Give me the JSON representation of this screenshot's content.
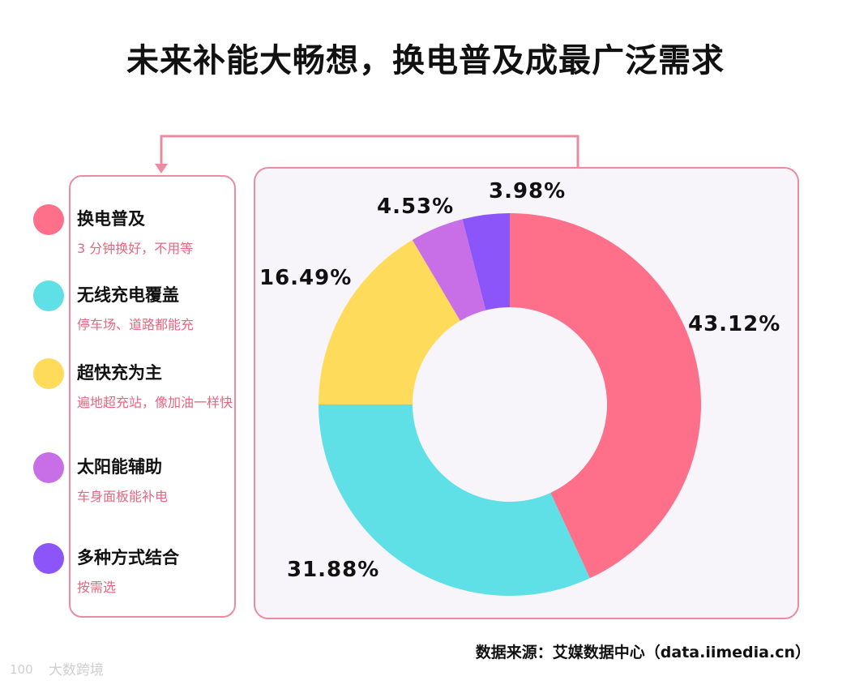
{
  "title": "未来补能大畅想，换电普及成最广泛需求",
  "legend": [
    {
      "title": "换电普及",
      "desc": "3 分钟换好，不用等"
    },
    {
      "title": "无线充电覆盖",
      "desc": "停车场、道路都能充"
    },
    {
      "title": "超快充为主",
      "desc": "遍地超充站，像加油一样快"
    },
    {
      "title": "太阳能辅助",
      "desc": "车身面板能补电"
    },
    {
      "title": "多种方式结合",
      "desc": "按需选"
    }
  ],
  "source": "数据来源：艾媒数据中心（data.iimedia.cn）",
  "watermark": {
    "text": "大数跨境",
    "logo_text": "100"
  },
  "colors": {
    "accent_border": "#ec8b9f",
    "desc_text": "#e4677f"
  },
  "chart_data": {
    "type": "pie",
    "donut": true,
    "categories": [
      "换电普及",
      "无线充电覆盖",
      "超快充为主",
      "太阳能辅助",
      "多种方式结合"
    ],
    "values": [
      43.12,
      31.88,
      16.49,
      4.53,
      3.98
    ],
    "labels": [
      "43.12%",
      "31.88%",
      "16.49%",
      "4.53%",
      "3.98%"
    ],
    "colors": [
      "#fe6f8a",
      "#5ee0e6",
      "#ffdb5c",
      "#c86fe8",
      "#8b55f9"
    ],
    "start": "12 o'clock",
    "direction": "clockwise",
    "legend_position": "left"
  }
}
